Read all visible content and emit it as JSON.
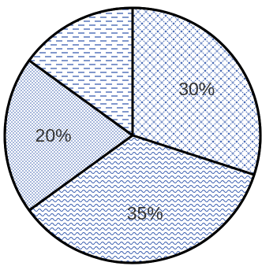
{
  "chart_data": {
    "type": "pie",
    "slices": [
      {
        "label": "30%",
        "value": 30,
        "pattern": "crosshatch"
      },
      {
        "label": "35%",
        "value": 35,
        "pattern": "wave"
      },
      {
        "label": "20%",
        "value": 20,
        "pattern": "dots"
      },
      {
        "label": "",
        "value": 15,
        "pattern": "dashes"
      }
    ],
    "start_angle_deg": 0,
    "direction": "clockwise-from-top",
    "colors": {
      "pattern": "#3b5fb0",
      "outline": "#000000",
      "background": "#ffffff"
    }
  }
}
